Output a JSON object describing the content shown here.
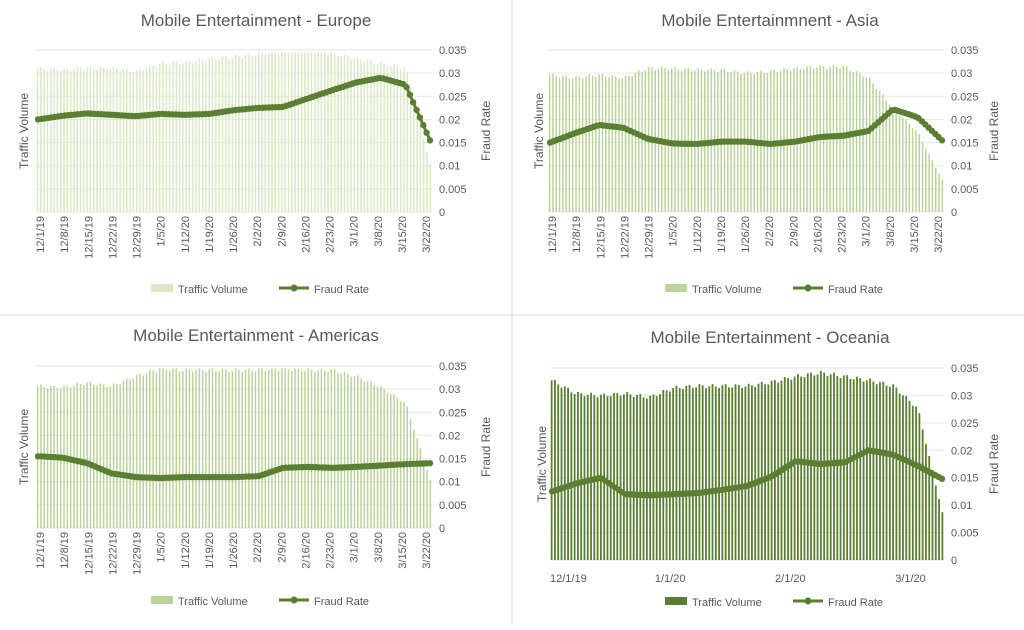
{
  "colors": {
    "fraud": "#5a7f32",
    "bar_light": "#d9e8c5",
    "bar_mid": "#b9d39b",
    "bar_dark": "#5a7f32",
    "text": "#595959",
    "grid": "#e6e6e6",
    "border": "#d9d9d9"
  },
  "chart_data": [
    {
      "type": "bar",
      "title": "Mobile Entertainment - Europe",
      "xlabel": "",
      "ylabel": "Traffic Volume",
      "y2label": "Fraud Rate",
      "y2lim": [
        0,
        0.035
      ],
      "y2ticks": [
        "0.035",
        "0.03",
        "0.025",
        "0.02",
        "0.015",
        "0.01",
        "0.005",
        "0"
      ],
      "xticks": [
        "12/1/19",
        "12/8/19",
        "12/15/19",
        "12/22/19",
        "12/29/19",
        "1/5/20",
        "1/12/20",
        "1/19/20",
        "1/26/20",
        "2/2/20",
        "2/9/20",
        "2/16/20",
        "2/23/20",
        "3/1/20",
        "3/8/20",
        "3/15/20",
        "3/22/20"
      ],
      "legend": "bottom",
      "series": [
        {
          "name": "Traffic Volume",
          "kind": "bar",
          "intensity": "light",
          "values": [
            0.9,
            0.89,
            0.9,
            0.9,
            0.88,
            0.93,
            0.94,
            0.96,
            0.97,
            0.99,
            1.0,
            1.01,
            0.99,
            0.96,
            0.93,
            0.9,
            0.3
          ]
        },
        {
          "name": "Fraud Rate",
          "kind": "line",
          "values": [
            0.02,
            0.0208,
            0.0213,
            0.021,
            0.0207,
            0.0212,
            0.021,
            0.0212,
            0.022,
            0.0225,
            0.0227,
            0.0245,
            0.0263,
            0.028,
            0.029,
            0.0275,
            0.0155
          ]
        }
      ]
    },
    {
      "type": "bar",
      "title": "Mobile Entertainmnent - Asia",
      "xlabel": "",
      "ylabel": "Traffic Volume",
      "y2label": "Fraud Rate",
      "y2lim": [
        0,
        0.035
      ],
      "y2ticks": [
        "0.035",
        "0.03",
        "0.025",
        "0.02",
        "0.015",
        "0.01",
        "0.005",
        "0"
      ],
      "xticks": [
        "12/1/19",
        "12/8/19",
        "12/15/19",
        "12/22/19",
        "12/29/19",
        "1/5/20",
        "1/12/20",
        "1/19/20",
        "1/26/20",
        "2/2/20",
        "2/9/20",
        "2/16/20",
        "2/23/20",
        "3/1/20",
        "3/8/20",
        "3/15/20",
        "3/22/20"
      ],
      "legend": "bottom",
      "series": [
        {
          "name": "Traffic Volume",
          "kind": "bar",
          "intensity": "mid",
          "values": [
            0.86,
            0.84,
            0.86,
            0.84,
            0.9,
            0.9,
            0.89,
            0.89,
            0.87,
            0.88,
            0.9,
            0.91,
            0.91,
            0.84,
            0.65,
            0.5,
            0.2
          ]
        },
        {
          "name": "Fraud Rate",
          "kind": "line",
          "values": [
            0.015,
            0.017,
            0.0188,
            0.0182,
            0.0158,
            0.0148,
            0.0147,
            0.0152,
            0.0152,
            0.0147,
            0.0152,
            0.0162,
            0.0165,
            0.0175,
            0.0222,
            0.0205,
            0.0155
          ]
        }
      ]
    },
    {
      "type": "bar",
      "title": "Mobile Entertainment - Americas",
      "xlabel": "",
      "ylabel": "Traffic Volume",
      "y2label": "Fraud Rate",
      "y2lim": [
        0,
        0.035
      ],
      "y2ticks": [
        "0.035",
        "0.03",
        "0.025",
        "0.02",
        "0.015",
        "0.01",
        "0.005",
        "0"
      ],
      "xticks": [
        "12/1/19",
        "12/8/19",
        "12/15/19",
        "12/22/19",
        "12/29/19",
        "1/5/20",
        "1/12/20",
        "1/19/20",
        "1/26/20",
        "2/2/20",
        "2/9/20",
        "2/16/20",
        "2/23/20",
        "3/1/20",
        "3/8/20",
        "3/15/20",
        "3/22/20"
      ],
      "legend": "bottom",
      "series": [
        {
          "name": "Traffic Volume",
          "kind": "bar",
          "intensity": "mid",
          "values": [
            0.89,
            0.88,
            0.91,
            0.89,
            0.95,
            1.0,
            0.99,
            0.99,
            0.99,
            0.99,
            1.0,
            0.99,
            0.99,
            0.95,
            0.88,
            0.78,
            0.3
          ]
        },
        {
          "name": "Fraud Rate",
          "kind": "line",
          "values": [
            0.0155,
            0.0152,
            0.014,
            0.0118,
            0.011,
            0.0108,
            0.011,
            0.011,
            0.011,
            0.0112,
            0.013,
            0.0132,
            0.013,
            0.0132,
            0.0135,
            0.0138,
            0.014
          ]
        }
      ]
    },
    {
      "type": "bar",
      "title": "Mobile Entertainment - Oceania",
      "xlabel": "",
      "ylabel": "Traffic Volume",
      "y2label": "Fraud Rate",
      "y2lim": [
        0,
        0.035
      ],
      "y2ticks": [
        "0.035",
        "0.03",
        "0.025",
        "0.02",
        "0.015",
        "0.01",
        "0.005",
        "0"
      ],
      "xticks": [
        "12/1/19",
        "1/1/20",
        "2/1/20",
        "3/1/20"
      ],
      "legend": "bottom",
      "series": [
        {
          "name": "Traffic Volume",
          "kind": "bar",
          "intensity": "dark",
          "values": [
            0.95,
            0.88,
            0.87,
            0.88,
            0.86,
            0.91,
            0.92,
            0.92,
            0.92,
            0.94,
            0.97,
            0.99,
            0.97,
            0.95,
            0.92,
            0.8,
            0.25
          ]
        },
        {
          "name": "Fraud Rate",
          "kind": "line",
          "values": [
            0.0125,
            0.014,
            0.015,
            0.012,
            0.0118,
            0.012,
            0.0122,
            0.0128,
            0.0135,
            0.0152,
            0.018,
            0.0175,
            0.0178,
            0.02,
            0.0192,
            0.0172,
            0.0148
          ]
        }
      ]
    }
  ]
}
